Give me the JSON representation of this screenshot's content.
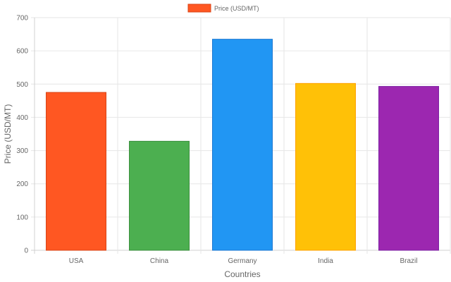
{
  "chart_data": {
    "type": "bar",
    "categories": [
      "USA",
      "China",
      "Germany",
      "India",
      "Brazil"
    ],
    "series": [
      {
        "name": "Price (USD/MT)",
        "values": [
          475,
          328,
          635,
          502,
          493
        ]
      }
    ],
    "bar_colors": [
      "#FF5722",
      "#4CAF50",
      "#2196F3",
      "#FFC107",
      "#9C27B0"
    ],
    "bar_border_colors": [
      "#D84315",
      "#388E3C",
      "#1976D2",
      "#FFA000",
      "#7B1FA2"
    ],
    "legend_color": "#FF5722",
    "legend_border_color": "#D84315",
    "legend_position": "top",
    "xlabel": "Countries",
    "ylabel": "Price (USD/MT)",
    "ylim": [
      0,
      700
    ],
    "yticks": [
      "0",
      "100",
      "200",
      "300",
      "400",
      "500",
      "600",
      "700"
    ],
    "grid": true
  }
}
